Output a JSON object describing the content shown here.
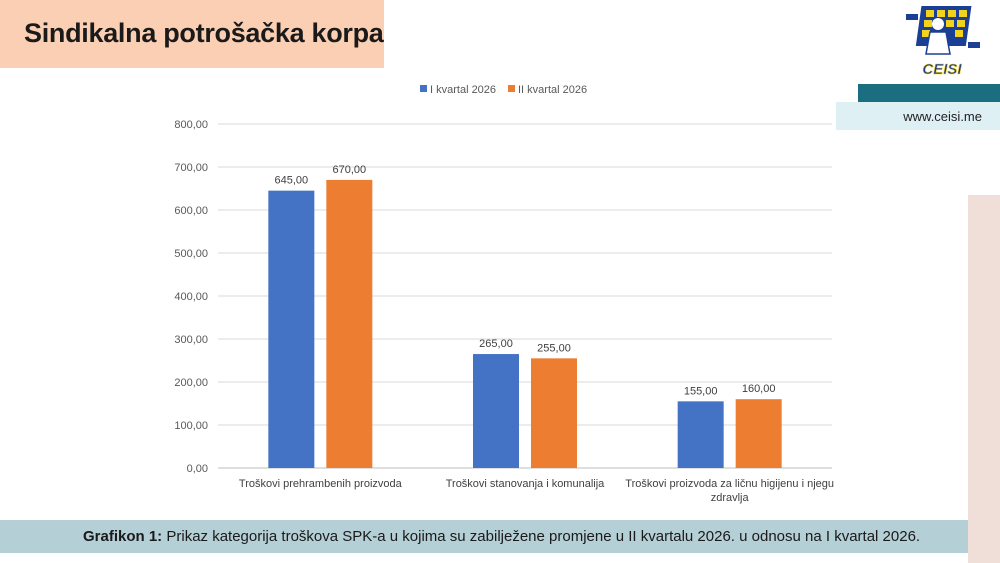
{
  "header": {
    "title": "Sindikalna potrošačka korpa"
  },
  "brand": {
    "logo_text": "CEISI",
    "url": "www.ceisi.me"
  },
  "caption": {
    "label": "Grafikon 1:",
    "text": " Prikaz kategorija troškova SPK-a u kojima su zabilježene promjene u II kvartalu 2026. u odnosu na I kvartal 2026."
  },
  "colors": {
    "series1": "#4472c4",
    "series2": "#ed7d31",
    "title_bg": "#fbcfb3",
    "caption_bg": "#b5cfd6",
    "accent": "#1b6e80"
  },
  "chart_data": {
    "type": "bar",
    "categories": [
      [
        "Troškovi prehrambenih proizvoda"
      ],
      [
        "Troškovi stanovanja i komunalija"
      ],
      [
        "Troškovi proizvoda za ličnu higijenu i njegu",
        "zdravlja"
      ]
    ],
    "series": [
      {
        "name": "I kvartal 2026",
        "values": [
          645,
          265,
          155
        ],
        "labels": [
          "645,00",
          "265,00",
          "155,00"
        ],
        "color": "#4472c4"
      },
      {
        "name": "II kvartal 2026",
        "values": [
          670,
          255,
          160
        ],
        "labels": [
          "670,00",
          "255,00",
          "160,00"
        ],
        "color": "#ed7d31"
      }
    ],
    "ylim": [
      0,
      800
    ],
    "yticks": [
      0,
      100,
      200,
      300,
      400,
      500,
      600,
      700,
      800
    ],
    "ytick_labels": [
      "0,00",
      "100,00",
      "200,00",
      "300,00",
      "400,00",
      "500,00",
      "600,00",
      "700,00",
      "800,00"
    ],
    "grid": true,
    "legend": "top-center"
  }
}
